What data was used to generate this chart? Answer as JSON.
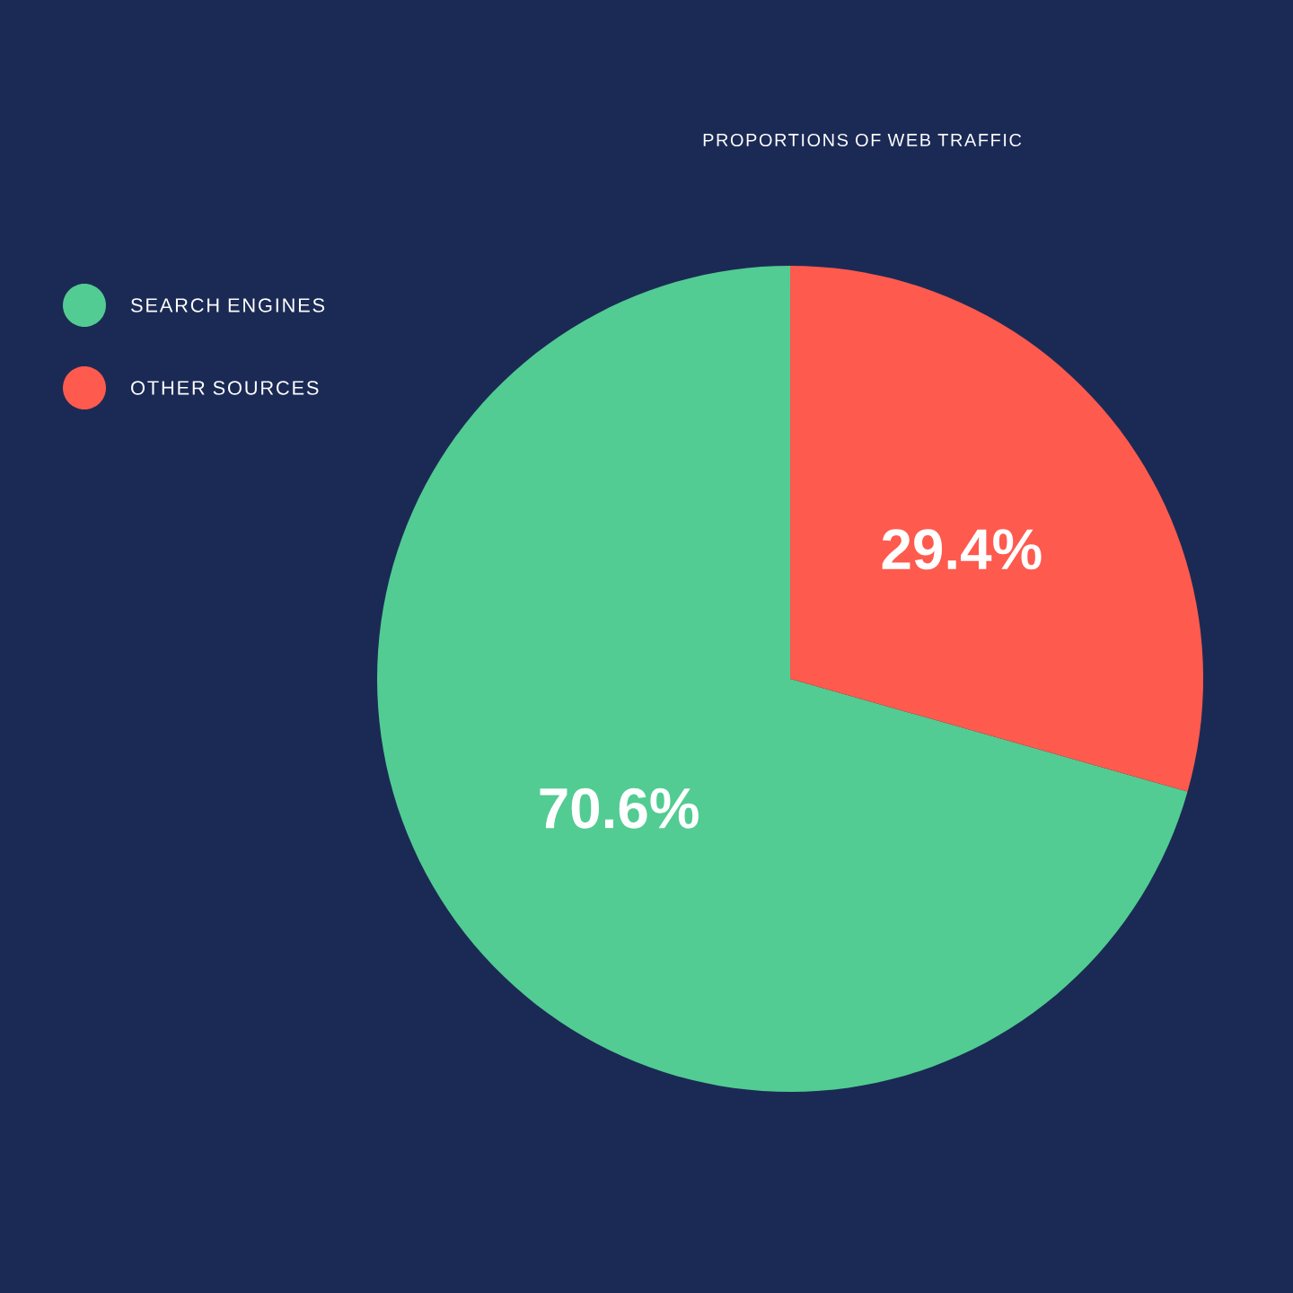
{
  "chart_data": {
    "type": "pie",
    "title": "PROPORTIONS OF WEB TRAFFIC",
    "categories": [
      "SEARCH ENGINES",
      "OTHER SOURCES"
    ],
    "values": [
      70.6,
      29.4
    ],
    "colors": [
      "#52cc92",
      "#fe5a4e"
    ],
    "value_labels": [
      "70.6%",
      "29.4%"
    ],
    "legend": "top left"
  }
}
